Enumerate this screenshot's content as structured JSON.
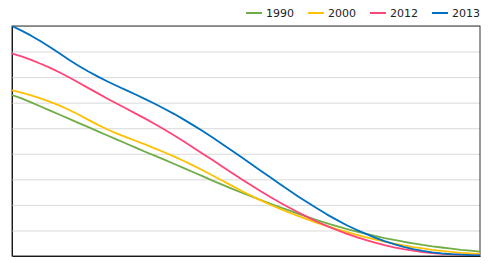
{
  "chart_data": {
    "type": "line",
    "x": [
      0,
      1,
      2,
      3,
      4,
      5,
      6,
      7,
      8,
      9,
      10,
      11,
      12,
      13,
      14,
      15,
      16,
      17,
      18,
      19,
      20,
      21,
      22,
      23,
      24,
      25,
      26,
      27,
      28,
      29,
      30,
      31,
      32,
      33,
      34,
      35,
      36,
      37,
      38,
      39,
      40,
      41,
      42,
      43,
      44,
      45,
      46,
      47,
      48,
      49
    ],
    "xlim": [
      0,
      49
    ],
    "ylim": [
      0,
      1.0
    ],
    "yticks": [
      0,
      0.1111111111111111,
      0.2222222222222222,
      0.3333333333333333,
      0.4444444444444444,
      0.5555555555555556,
      0.6666666666666666,
      0.7777777777777777,
      0.8888888888888888,
      1.0
    ],
    "grid": true,
    "tick_labels": false,
    "legend": "upper right",
    "series": [
      {
        "name": "1990",
        "color": "#70ad47",
        "values": [
          0.7,
          0.685,
          0.668,
          0.65,
          0.632,
          0.614,
          0.596,
          0.578,
          0.56,
          0.542,
          0.524,
          0.506,
          0.488,
          0.47,
          0.452,
          0.435,
          0.418,
          0.4,
          0.382,
          0.364,
          0.346,
          0.328,
          0.31,
          0.293,
          0.276,
          0.26,
          0.244,
          0.228,
          0.213,
          0.198,
          0.183,
          0.169,
          0.155,
          0.142,
          0.13,
          0.118,
          0.107,
          0.097,
          0.087,
          0.078,
          0.07,
          0.062,
          0.055,
          0.048,
          0.042,
          0.037,
          0.032,
          0.027,
          0.023,
          0.019
        ]
      },
      {
        "name": "2000",
        "color": "#ffc000",
        "values": [
          0.72,
          0.71,
          0.698,
          0.685,
          0.67,
          0.654,
          0.635,
          0.614,
          0.592,
          0.57,
          0.55,
          0.532,
          0.516,
          0.5,
          0.484,
          0.467,
          0.45,
          0.432,
          0.413,
          0.393,
          0.372,
          0.35,
          0.328,
          0.306,
          0.284,
          0.263,
          0.243,
          0.224,
          0.206,
          0.189,
          0.173,
          0.158,
          0.143,
          0.13,
          0.117,
          0.105,
          0.093,
          0.082,
          0.072,
          0.063,
          0.054,
          0.046,
          0.039,
          0.033,
          0.027,
          0.022,
          0.018,
          0.014,
          0.011,
          0.009
        ]
      },
      {
        "name": "2012",
        "color": "#ff4477",
        "values": [
          0.88,
          0.868,
          0.853,
          0.836,
          0.818,
          0.798,
          0.776,
          0.753,
          0.73,
          0.707,
          0.684,
          0.662,
          0.64,
          0.618,
          0.596,
          0.573,
          0.549,
          0.524,
          0.498,
          0.471,
          0.444,
          0.417,
          0.389,
          0.362,
          0.335,
          0.309,
          0.283,
          0.258,
          0.234,
          0.211,
          0.189,
          0.168,
          0.148,
          0.13,
          0.113,
          0.097,
          0.083,
          0.07,
          0.058,
          0.047,
          0.038,
          0.03,
          0.023,
          0.017,
          0.013,
          0.009,
          0.007,
          0.005,
          0.004,
          0.003
        ]
      },
      {
        "name": "2013",
        "color": "#0070c0",
        "values": [
          1.0,
          0.98,
          0.958,
          0.934,
          0.908,
          0.88,
          0.852,
          0.826,
          0.802,
          0.78,
          0.759,
          0.739,
          0.72,
          0.701,
          0.681,
          0.661,
          0.639,
          0.617,
          0.593,
          0.568,
          0.542,
          0.515,
          0.487,
          0.459,
          0.43,
          0.401,
          0.372,
          0.343,
          0.314,
          0.286,
          0.258,
          0.231,
          0.205,
          0.18,
          0.157,
          0.135,
          0.115,
          0.097,
          0.08,
          0.065,
          0.052,
          0.04,
          0.03,
          0.022,
          0.016,
          0.011,
          0.008,
          0.006,
          0.004,
          0.003
        ]
      }
    ]
  }
}
